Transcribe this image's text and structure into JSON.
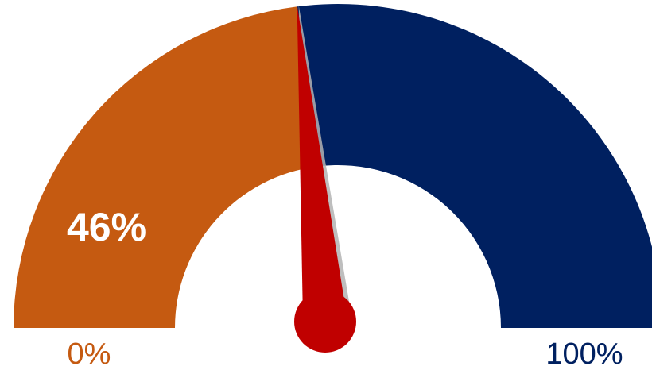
{
  "chart_data": {
    "type": "gauge",
    "value": 46,
    "min": 0,
    "max": 100,
    "value_label": "46%",
    "min_label": "0%",
    "max_label": "100%",
    "colors": {
      "filled": "#C55A11",
      "remaining": "#002060",
      "needle": "#C00000",
      "value_text": "#FFFFFF"
    }
  }
}
